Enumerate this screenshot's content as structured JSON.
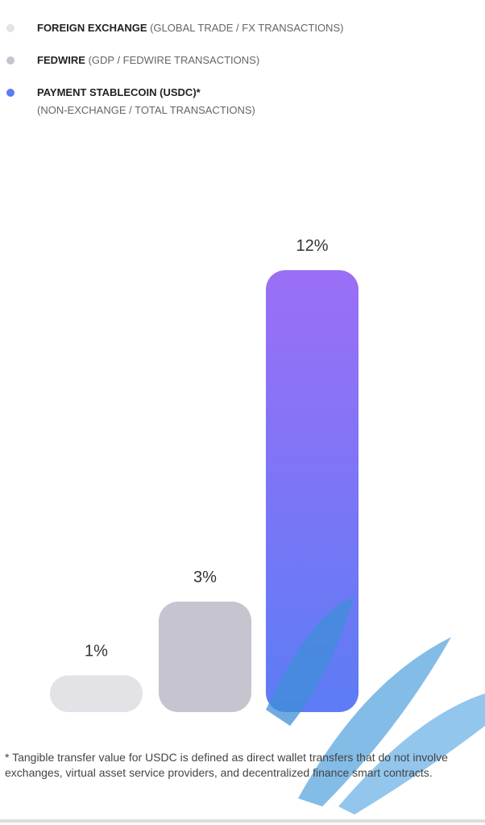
{
  "chart_data": {
    "type": "bar",
    "legend": [
      {
        "name": "FOREIGN EXCHANGE",
        "note": "(GLOBAL TRADE / FX TRANSACTIONS)"
      },
      {
        "name": "FEDWIRE",
        "note": "(GDP / FEDWIRE TRANSACTIONS)"
      },
      {
        "name": "PAYMENT STABLECOIN (USDC)*",
        "note": "(NON-EXCHANGE / TOTAL TRANSACTIONS)"
      }
    ],
    "categories": [
      null,
      null,
      null
    ],
    "values": [
      1,
      3,
      12
    ],
    "value_labels": [
      "1%",
      "3%",
      "12%"
    ],
    "colors": [
      "#e2e2e7",
      "#c6c4ce",
      [
        "#9b6ff6",
        "#5d7cf5"
      ]
    ],
    "footnote": "* Tangible transfer value for USDC is defined as direct wallet transfers that do not involve exchanges, virtual asset service providers, and decentralized finance smart contracts."
  }
}
